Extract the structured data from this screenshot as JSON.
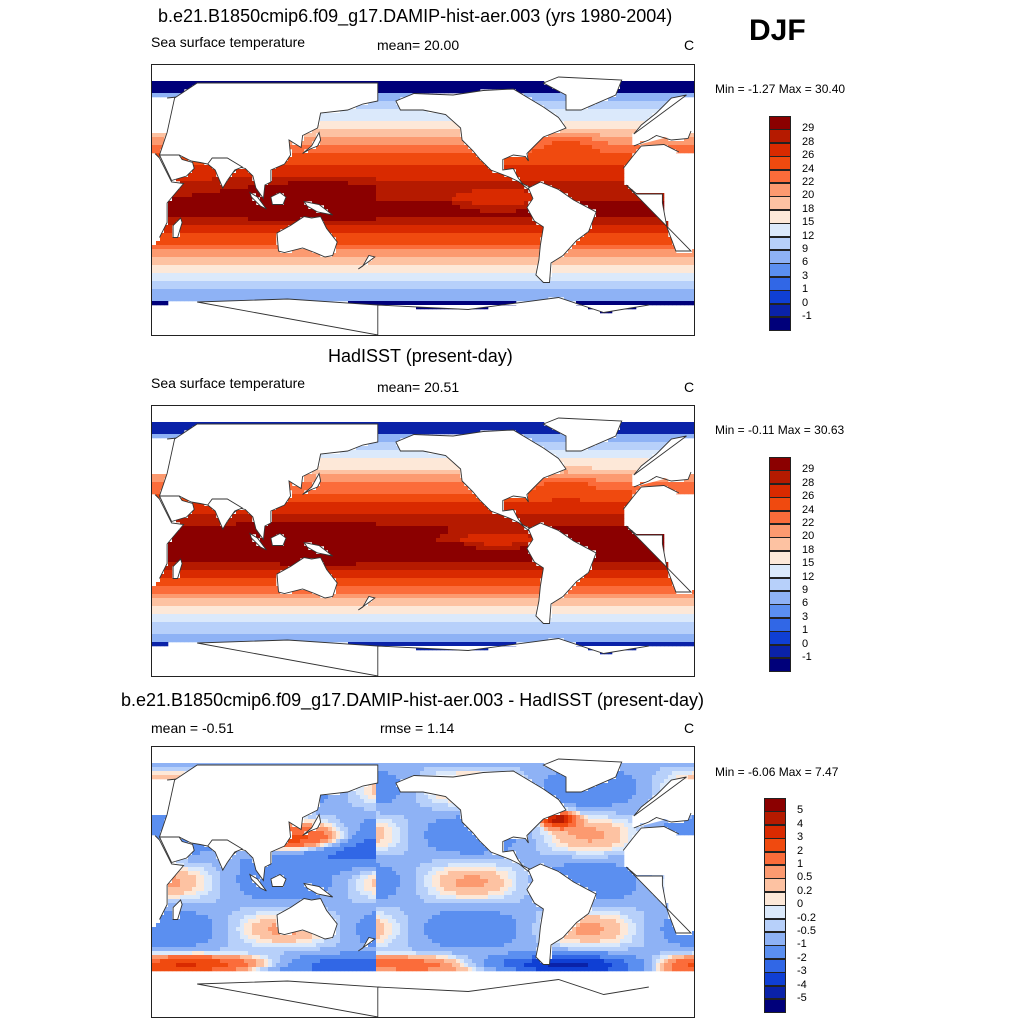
{
  "season": "DJF",
  "chart_data": [
    {
      "type": "heatmap",
      "title": "b.e21.B1850cmip6.f09_g17.DAMIP-hist-aer.003 (yrs 1980-2004)",
      "left_label": "Sea surface temperature",
      "center_label": "mean=  20.00",
      "units": "C",
      "minmax": "Min =  -1.27 Max =  30.40",
      "min": -1.27,
      "max": 30.4,
      "mean": 20.0,
      "colorbar": {
        "levels": [
          "29",
          "28",
          "26",
          "24",
          "22",
          "20",
          "18",
          "15",
          "12",
          "9",
          "6",
          "3",
          "1",
          "0",
          "-1"
        ],
        "colors": [
          "#8b0000",
          "#b51a00",
          "#d92a00",
          "#f04a0f",
          "#fb6c3a",
          "#fc9a70",
          "#fdc2a2",
          "#fde8d8",
          "#dbe9fb",
          "#b7d0fa",
          "#8eb2f5",
          "#5b8ff0",
          "#3167e6",
          "#0f3fd4",
          "#0a22a8",
          "#00007a"
        ]
      },
      "field": "model"
    },
    {
      "type": "heatmap",
      "title": "HadISST (present-day)",
      "left_label": "Sea surface temperature",
      "center_label": "mean=  20.51",
      "units": "C",
      "minmax": "Min =  -0.11 Max =  30.63",
      "min": -0.11,
      "max": 30.63,
      "mean": 20.51,
      "colorbar": {
        "levels": [
          "29",
          "28",
          "26",
          "24",
          "22",
          "20",
          "18",
          "15",
          "12",
          "9",
          "6",
          "3",
          "1",
          "0",
          "-1"
        ],
        "colors": [
          "#8b0000",
          "#b51a00",
          "#d92a00",
          "#f04a0f",
          "#fb6c3a",
          "#fc9a70",
          "#fdc2a2",
          "#fde8d8",
          "#dbe9fb",
          "#b7d0fa",
          "#8eb2f5",
          "#5b8ff0",
          "#3167e6",
          "#0f3fd4",
          "#0a22a8",
          "#00007a"
        ]
      },
      "field": "obs"
    },
    {
      "type": "heatmap",
      "title": "b.e21.B1850cmip6.f09_g17.DAMIP-hist-aer.003 - HadISST (present-day)",
      "left_label": "mean =  -0.51",
      "center_label": "rmse =   1.14",
      "units": "C",
      "minmax": "Min =  -6.06 Max =   7.47",
      "min": -6.06,
      "max": 7.47,
      "mean": -0.51,
      "rmse": 1.14,
      "colorbar": {
        "levels": [
          "5",
          "4",
          "3",
          "2",
          "1",
          "0.5",
          "0.2",
          "0",
          "-0.2",
          "-0.5",
          "-1",
          "-2",
          "-3",
          "-4",
          "-5"
        ],
        "colors": [
          "#8b0000",
          "#b51a00",
          "#d92a00",
          "#f04a0f",
          "#fb6c3a",
          "#fc9a70",
          "#fdc2a2",
          "#fde8d8",
          "#dbe9fb",
          "#b7d0fa",
          "#8eb2f5",
          "#5b8ff0",
          "#3167e6",
          "#0f3fd4",
          "#0a22a8",
          "#00007a"
        ]
      },
      "field": "diff"
    }
  ]
}
